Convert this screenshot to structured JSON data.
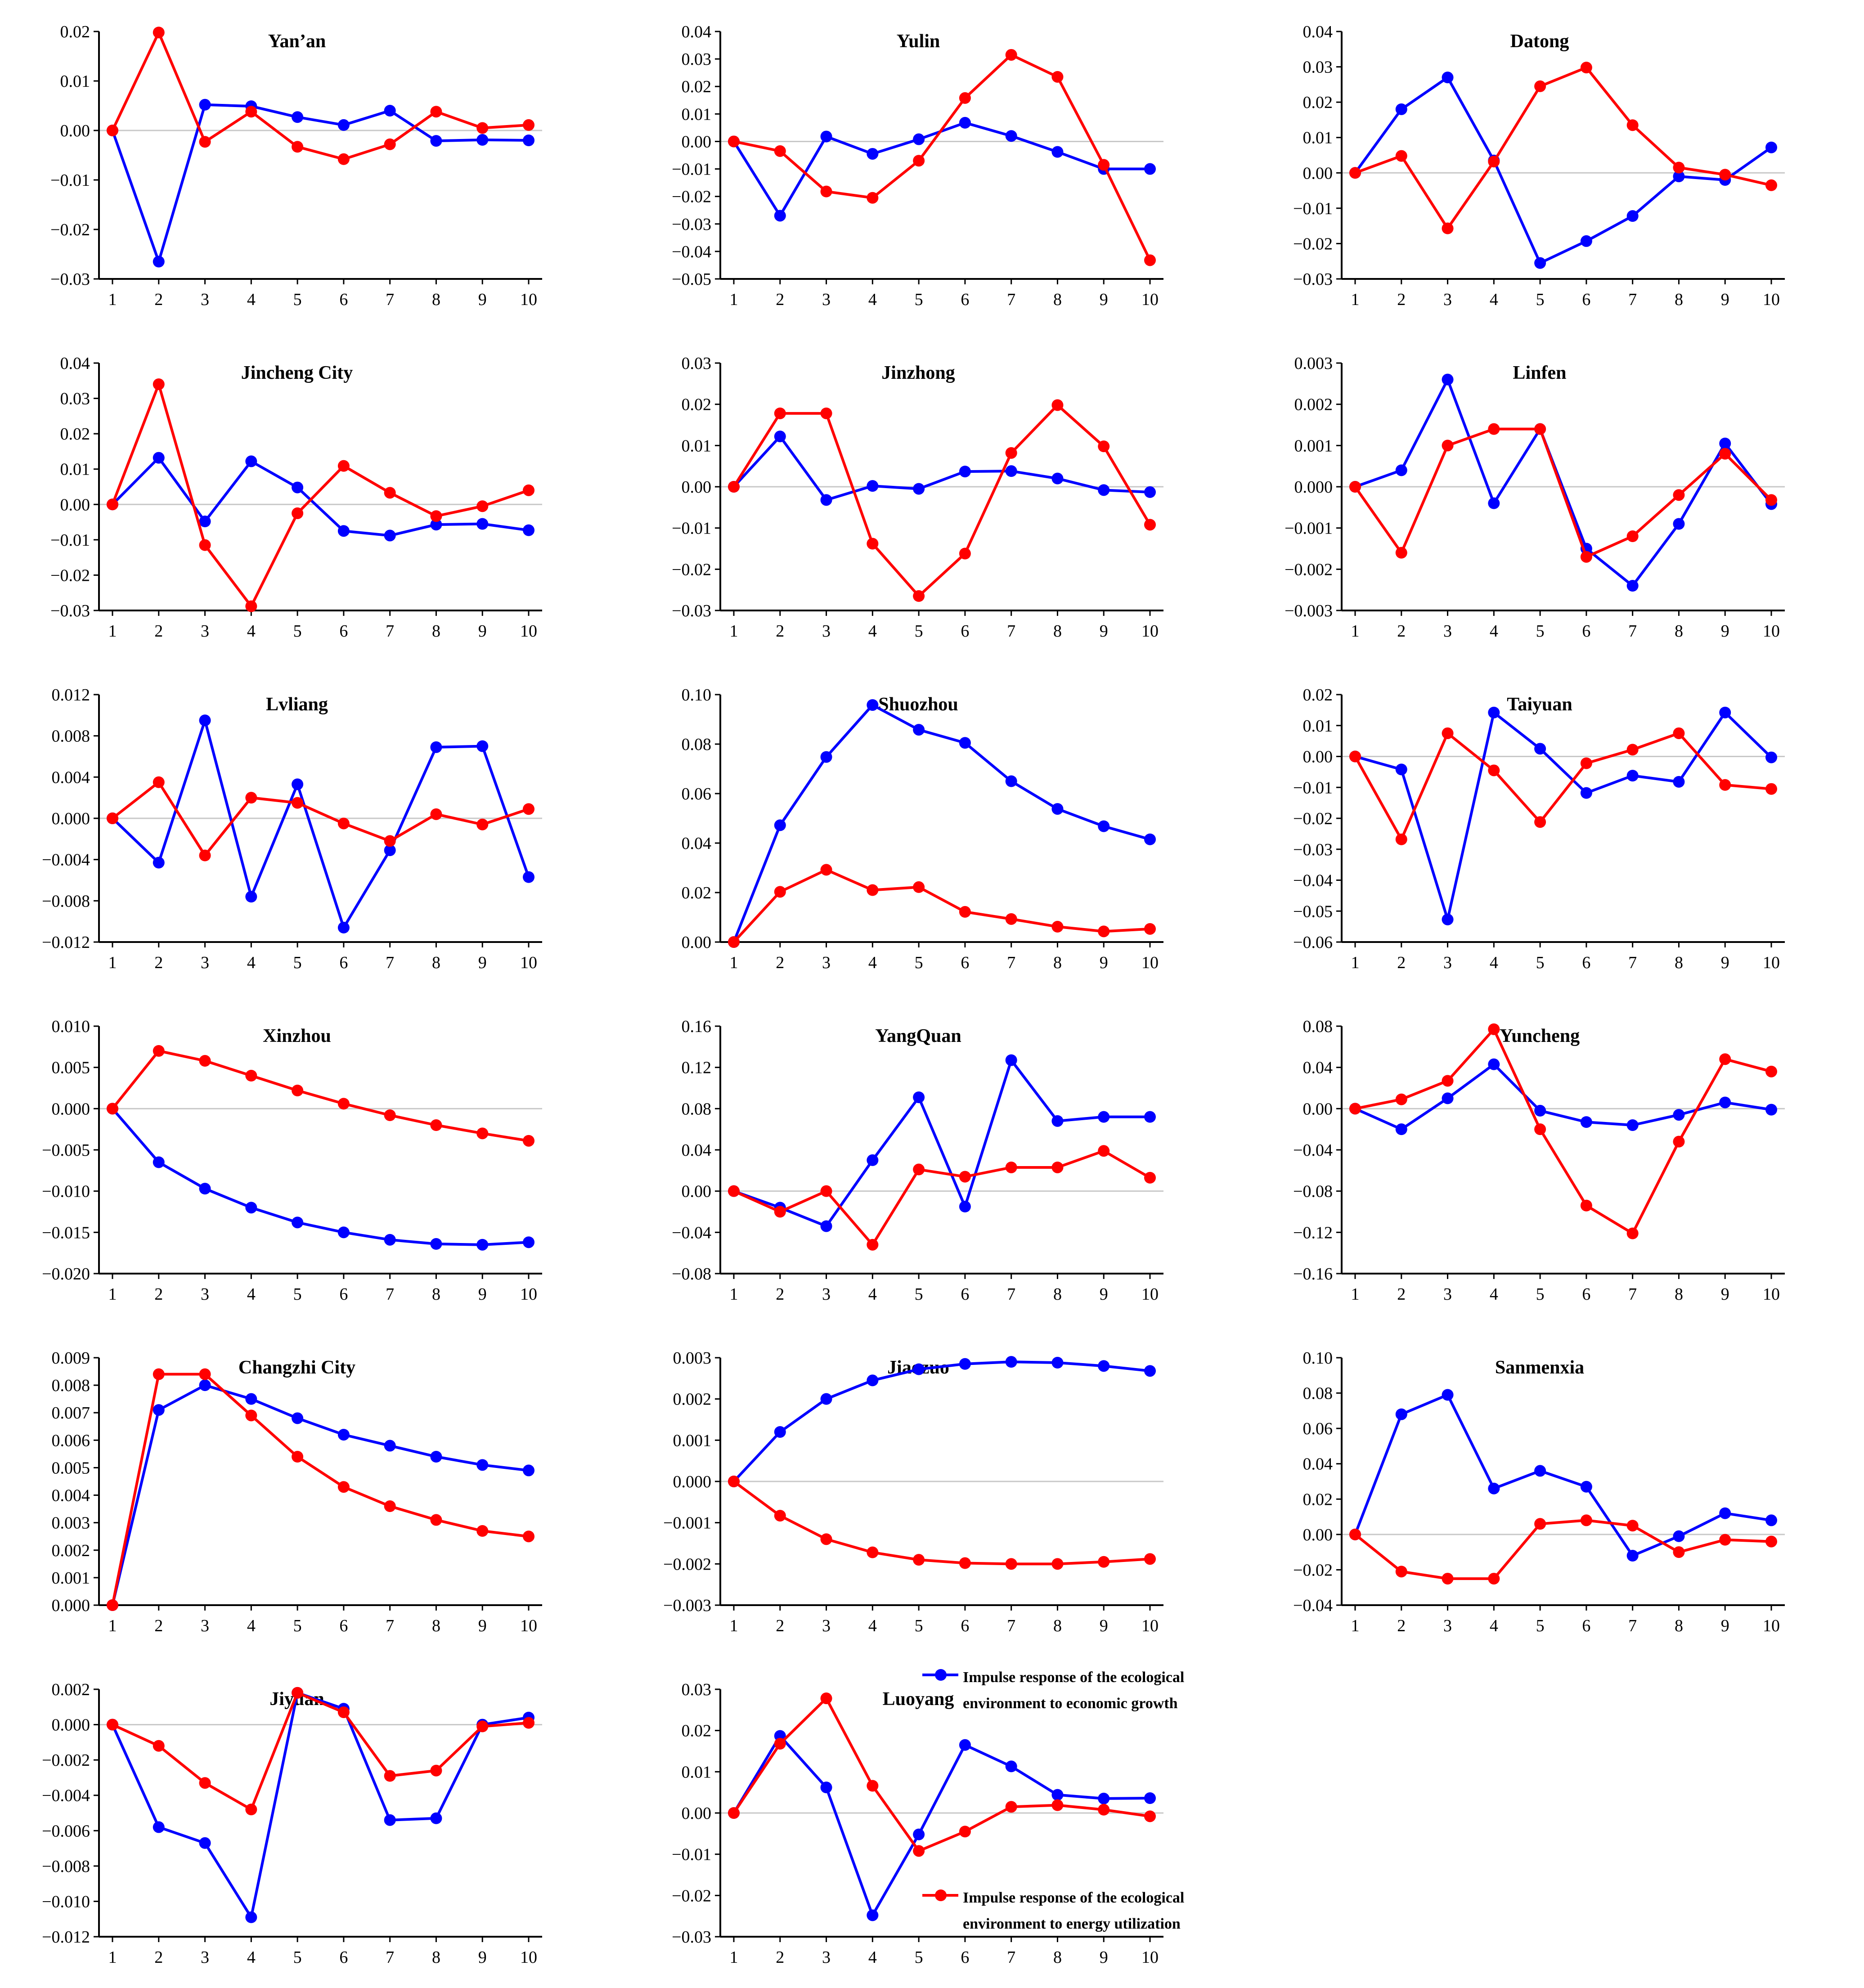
{
  "colors": {
    "economic": "#0000ff",
    "energy": "#ff0000",
    "axis": "#000000",
    "zero": "#c8c8c8"
  },
  "legend": {
    "economic_label": "Impulse response of the ecological environment to economic growth",
    "energy_label": "Impulse response of the ecological environment to energy utilization"
  },
  "chart_data": [
    {
      "type": "line",
      "title": "Yan’an",
      "x": [
        1,
        2,
        3,
        4,
        5,
        6,
        7,
        8,
        9,
        10
      ],
      "ylim": [
        -0.03,
        0.02
      ],
      "yticks": [
        "0.02",
        "0.01",
        "0.00",
        "−0.01",
        "−0.02",
        "−0.03"
      ],
      "ytick_values": [
        0.02,
        0.01,
        0,
        -0.01,
        -0.02,
        -0.03
      ],
      "series": [
        {
          "name": "economic growth",
          "values": [
            0,
            -0.0265,
            0.0052,
            0.0049,
            0.0027,
            0.0011,
            0.004,
            -0.0021,
            -0.0019,
            -0.002
          ]
        },
        {
          "name": "energy utilization",
          "values": [
            0,
            0.0198,
            -0.0023,
            0.0038,
            -0.0033,
            -0.0058,
            -0.0028,
            0.0038,
            0.0005,
            0.0011
          ]
        }
      ]
    },
    {
      "type": "line",
      "title": "Yulin",
      "x": [
        1,
        2,
        3,
        4,
        5,
        6,
        7,
        8,
        9,
        10
      ],
      "ylim": [
        -0.05,
        0.04
      ],
      "yticks": [
        "0.04",
        "0.03",
        "0.02",
        "0.01",
        "0.00",
        "−0.01",
        "−0.02",
        "−0.03",
        "−0.04",
        "−0.05"
      ],
      "ytick_values": [
        0.04,
        0.03,
        0.02,
        0.01,
        0,
        -0.01,
        -0.02,
        -0.03,
        -0.04,
        -0.05
      ],
      "series": [
        {
          "name": "economic growth",
          "values": [
            0,
            -0.027,
            0.0018,
            -0.0045,
            0.0008,
            0.0068,
            0.002,
            -0.0038,
            -0.01,
            -0.01
          ]
        },
        {
          "name": "energy utilization",
          "values": [
            0,
            -0.0035,
            -0.0182,
            -0.0205,
            -0.007,
            0.0158,
            0.0315,
            0.0235,
            -0.0085,
            -0.0432
          ]
        }
      ]
    },
    {
      "type": "line",
      "title": "Datong",
      "x": [
        1,
        2,
        3,
        4,
        5,
        6,
        7,
        8,
        9,
        10
      ],
      "ylim": [
        -0.03,
        0.04
      ],
      "yticks": [
        "0.04",
        "0.03",
        "0.02",
        "0.01",
        "0.00",
        "−0.01",
        "−0.02",
        "−0.03"
      ],
      "ytick_values": [
        0.04,
        0.03,
        0.02,
        0.01,
        0,
        -0.01,
        -0.02,
        -0.03
      ],
      "series": [
        {
          "name": "economic growth",
          "values": [
            0,
            0.018,
            0.027,
            0.0035,
            -0.0255,
            -0.0193,
            -0.0122,
            -0.001,
            -0.002,
            0.0072
          ]
        },
        {
          "name": "energy utilization",
          "values": [
            0,
            0.0048,
            -0.0157,
            0.0032,
            0.0245,
            0.0298,
            0.0135,
            0.0015,
            -0.0005,
            -0.0035
          ]
        }
      ]
    },
    {
      "type": "line",
      "title": "Jincheng City",
      "x": [
        1,
        2,
        3,
        4,
        5,
        6,
        7,
        8,
        9,
        10
      ],
      "ylim": [
        -0.03,
        0.04
      ],
      "yticks": [
        "0.04",
        "0.03",
        "0.02",
        "0.01",
        "0.00",
        "−0.01",
        "−0.02",
        "−0.03"
      ],
      "ytick_values": [
        0.04,
        0.03,
        0.02,
        0.01,
        0,
        -0.01,
        -0.02,
        -0.03
      ],
      "series": [
        {
          "name": "economic growth",
          "values": [
            0,
            0.0132,
            -0.0048,
            0.0122,
            0.0048,
            -0.0075,
            -0.0088,
            -0.0057,
            -0.0055,
            -0.0073
          ]
        },
        {
          "name": "energy utilization",
          "values": [
            0,
            0.034,
            -0.0115,
            -0.0288,
            -0.0025,
            0.0109,
            0.0033,
            -0.0033,
            -0.0005,
            0.004
          ]
        }
      ]
    },
    {
      "type": "line",
      "title": "Jinzhong",
      "x": [
        1,
        2,
        3,
        4,
        5,
        6,
        7,
        8,
        9,
        10
      ],
      "ylim": [
        -0.03,
        0.03
      ],
      "yticks": [
        "0.03",
        "0.02",
        "0.01",
        "0.00",
        "−0.01",
        "−0.02",
        "−0.03"
      ],
      "ytick_values": [
        0.03,
        0.02,
        0.01,
        0,
        -0.01,
        -0.02,
        -0.03
      ],
      "series": [
        {
          "name": "economic growth",
          "values": [
            0,
            0.0122,
            -0.0032,
            0.0002,
            -0.0005,
            0.0037,
            0.0038,
            0.002,
            -0.0008,
            -0.0013
          ]
        },
        {
          "name": "energy utilization",
          "values": [
            0,
            0.0178,
            0.0178,
            -0.0138,
            -0.0265,
            -0.0162,
            0.0082,
            0.0198,
            0.0098,
            -0.0092
          ]
        }
      ]
    },
    {
      "type": "line",
      "title": "Linfen",
      "x": [
        1,
        2,
        3,
        4,
        5,
        6,
        7,
        8,
        9,
        10
      ],
      "ylim": [
        -0.003,
        0.003
      ],
      "yticks": [
        "0.003",
        "0.002",
        "0.001",
        "0.000",
        "−0.001",
        "−0.002",
        "−0.003"
      ],
      "ytick_values": [
        0.003,
        0.002,
        0.001,
        0,
        -0.001,
        -0.002,
        -0.003
      ],
      "series": [
        {
          "name": "economic growth",
          "values": [
            0,
            0.0004,
            0.0026,
            -0.0004,
            0.0014,
            -0.0015,
            -0.0024,
            -0.0009,
            0.00105,
            -0.00042
          ]
        },
        {
          "name": "energy utilization",
          "values": [
            0,
            -0.0016,
            0.001,
            0.0014,
            0.0014,
            -0.0017,
            -0.0012,
            -0.0002,
            0.0008,
            -0.00032
          ]
        }
      ]
    },
    {
      "type": "line",
      "title": "Lvliang",
      "x": [
        1,
        2,
        3,
        4,
        5,
        6,
        7,
        8,
        9,
        10
      ],
      "ylim": [
        -0.012,
        0.012
      ],
      "yticks": [
        "0.012",
        "0.008",
        "0.004",
        "0.000",
        "−0.004",
        "−0.008",
        "−0.012"
      ],
      "ytick_values": [
        0.012,
        0.008,
        0.004,
        0,
        -0.004,
        -0.008,
        -0.012
      ],
      "series": [
        {
          "name": "economic growth",
          "values": [
            0,
            -0.0043,
            0.0095,
            -0.0076,
            0.0033,
            -0.0106,
            -0.0031,
            0.0069,
            0.007,
            -0.0057
          ]
        },
        {
          "name": "energy utilization",
          "values": [
            0,
            0.0035,
            -0.0036,
            0.002,
            0.0015,
            -0.0005,
            -0.0022,
            0.0004,
            -0.0006,
            0.0009
          ]
        }
      ]
    },
    {
      "type": "line",
      "title": "Shuozhou",
      "x": [
        1,
        2,
        3,
        4,
        5,
        6,
        7,
        8,
        9,
        10
      ],
      "ylim": [
        0,
        0.1
      ],
      "yticks": [
        "0.10",
        "0.08",
        "0.06",
        "0.04",
        "0.02",
        "0.00"
      ],
      "ytick_values": [
        0.1,
        0.08,
        0.06,
        0.04,
        0.02,
        0
      ],
      "series": [
        {
          "name": "economic growth",
          "values": [
            0,
            0.0472,
            0.0748,
            0.0958,
            0.0858,
            0.0805,
            0.065,
            0.0538,
            0.0468,
            0.0415
          ]
        },
        {
          "name": "energy utilization",
          "values": [
            0,
            0.0203,
            0.0292,
            0.021,
            0.0222,
            0.0122,
            0.0093,
            0.0062,
            0.0043,
            0.0053
          ]
        }
      ]
    },
    {
      "type": "line",
      "title": "Taiyuan",
      "x": [
        1,
        2,
        3,
        4,
        5,
        6,
        7,
        8,
        9,
        10
      ],
      "ylim": [
        -0.06,
        0.02
      ],
      "yticks": [
        "0.02",
        "0.01",
        "0.00",
        "−0.01",
        "−0.02",
        "−0.03",
        "−0.04",
        "−0.05",
        "−0.06"
      ],
      "ytick_values": [
        0.02,
        0.01,
        0,
        -0.01,
        -0.02,
        -0.03,
        -0.04,
        -0.05,
        -0.06
      ],
      "series": [
        {
          "name": "economic growth",
          "values": [
            0,
            -0.0042,
            -0.0527,
            0.0142,
            0.0025,
            -0.0118,
            -0.0062,
            -0.0082,
            0.0142,
            -0.0003
          ]
        },
        {
          "name": "energy utilization",
          "values": [
            0,
            -0.0268,
            0.0075,
            -0.0045,
            -0.0212,
            -0.0022,
            0.0022,
            0.0075,
            -0.0092,
            -0.0105
          ]
        }
      ]
    },
    {
      "type": "line",
      "title": "Xinzhou",
      "x": [
        1,
        2,
        3,
        4,
        5,
        6,
        7,
        8,
        9,
        10
      ],
      "ylim": [
        -0.02,
        0.01
      ],
      "yticks": [
        "0.010",
        "0.005",
        "0.000",
        "−0.005",
        "−0.010",
        "−0.015",
        "−0.020"
      ],
      "ytick_values": [
        0.01,
        0.005,
        0,
        -0.005,
        -0.01,
        -0.015,
        -0.02
      ],
      "series": [
        {
          "name": "economic growth",
          "values": [
            0,
            -0.0065,
            -0.0097,
            -0.012,
            -0.0138,
            -0.015,
            -0.0159,
            -0.0164,
            -0.0165,
            -0.0162
          ]
        },
        {
          "name": "energy utilization",
          "values": [
            0,
            0.007,
            0.0058,
            0.004,
            0.0022,
            0.0006,
            -0.0008,
            -0.002,
            -0.003,
            -0.0039
          ]
        }
      ]
    },
    {
      "type": "line",
      "title": "YangQuan",
      "x": [
        1,
        2,
        3,
        4,
        5,
        6,
        7,
        8,
        9,
        10
      ],
      "ylim": [
        -0.08,
        0.16
      ],
      "yticks": [
        "0.16",
        "0.12",
        "0.08",
        "0.04",
        "0.00",
        "−0.04",
        "−0.08"
      ],
      "ytick_values": [
        0.16,
        0.12,
        0.08,
        0.04,
        0,
        -0.04,
        -0.08
      ],
      "series": [
        {
          "name": "economic growth",
          "values": [
            0,
            -0.016,
            -0.034,
            0.03,
            0.091,
            -0.015,
            0.127,
            0.068,
            0.072,
            0.072
          ]
        },
        {
          "name": "energy utilization",
          "values": [
            0,
            -0.02,
            0,
            -0.052,
            0.021,
            0.014,
            0.023,
            0.023,
            0.039,
            0.013
          ]
        }
      ]
    },
    {
      "type": "line",
      "title": "Yuncheng",
      "x": [
        1,
        2,
        3,
        4,
        5,
        6,
        7,
        8,
        9,
        10
      ],
      "ylim": [
        -0.16,
        0.08
      ],
      "yticks": [
        "0.08",
        "0.04",
        "0.00",
        "−0.04",
        "−0.08",
        "−0.12",
        "−0.16"
      ],
      "ytick_values": [
        0.08,
        0.04,
        0,
        -0.04,
        -0.08,
        -0.12,
        -0.16
      ],
      "series": [
        {
          "name": "economic growth",
          "values": [
            0,
            -0.02,
            0.01,
            0.043,
            -0.002,
            -0.013,
            -0.016,
            -0.006,
            0.006,
            -0.001
          ]
        },
        {
          "name": "energy utilization",
          "values": [
            0,
            0.009,
            0.027,
            0.077,
            -0.02,
            -0.094,
            -0.121,
            -0.032,
            0.048,
            0.036
          ]
        }
      ]
    },
    {
      "type": "line",
      "title": "Changzhi City",
      "x": [
        1,
        2,
        3,
        4,
        5,
        6,
        7,
        8,
        9,
        10
      ],
      "ylim": [
        0,
        0.009
      ],
      "yticks": [
        "0.009",
        "0.008",
        "0.007",
        "0.006",
        "0.005",
        "0.004",
        "0.003",
        "0.002",
        "0.001",
        "0.000"
      ],
      "ytick_values": [
        0.009,
        0.008,
        0.007,
        0.006,
        0.005,
        0.004,
        0.003,
        0.002,
        0.001,
        0
      ],
      "series": [
        {
          "name": "economic growth",
          "values": [
            0,
            0.0071,
            0.008,
            0.0075,
            0.0068,
            0.0062,
            0.0058,
            0.0054,
            0.0051,
            0.0049
          ]
        },
        {
          "name": "energy utilization",
          "values": [
            0,
            0.0084,
            0.0084,
            0.0069,
            0.0054,
            0.0043,
            0.0036,
            0.0031,
            0.0027,
            0.0025
          ]
        }
      ]
    },
    {
      "type": "line",
      "title": "Jiaozuo",
      "x": [
        1,
        2,
        3,
        4,
        5,
        6,
        7,
        8,
        9,
        10
      ],
      "ylim": [
        -0.003,
        0.003
      ],
      "yticks": [
        "0.003",
        "0.002",
        "0.001",
        "0.000",
        "−0.001",
        "−0.002",
        "−0.003"
      ],
      "ytick_values": [
        0.003,
        0.002,
        0.001,
        0,
        -0.001,
        -0.002,
        -0.003
      ],
      "series": [
        {
          "name": "economic growth",
          "values": [
            0,
            0.0012,
            0.002,
            0.00245,
            0.00272,
            0.00285,
            0.0029,
            0.00288,
            0.0028,
            0.00268
          ]
        },
        {
          "name": "energy utilization",
          "values": [
            0,
            -0.00083,
            -0.0014,
            -0.00172,
            -0.0019,
            -0.00198,
            -0.002,
            -0.002,
            -0.00195,
            -0.00188
          ]
        }
      ]
    },
    {
      "type": "line",
      "title": "Sanmenxia",
      "x": [
        1,
        2,
        3,
        4,
        5,
        6,
        7,
        8,
        9,
        10
      ],
      "ylim": [
        -0.04,
        0.1
      ],
      "yticks": [
        "0.10",
        "0.08",
        "0.06",
        "0.04",
        "0.02",
        "0.00",
        "−0.02",
        "−0.04"
      ],
      "ytick_values": [
        0.1,
        0.08,
        0.06,
        0.04,
        0.02,
        0,
        -0.02,
        -0.04
      ],
      "series": [
        {
          "name": "economic growth",
          "values": [
            0,
            0.068,
            0.079,
            0.026,
            0.036,
            0.027,
            -0.012,
            -0.001,
            0.012,
            0.008
          ]
        },
        {
          "name": "energy utilization",
          "values": [
            0,
            -0.021,
            -0.025,
            -0.025,
            0.006,
            0.008,
            0.005,
            -0.01,
            -0.003,
            -0.004
          ]
        }
      ]
    },
    {
      "type": "line",
      "title": "Jiyuan",
      "x": [
        1,
        2,
        3,
        4,
        5,
        6,
        7,
        8,
        9,
        10
      ],
      "ylim": [
        -0.012,
        0.002
      ],
      "yticks": [
        "0.002",
        "0.000",
        "−0.002",
        "−0.004",
        "−0.006",
        "−0.008",
        "−0.010",
        "−0.012"
      ],
      "ytick_values": [
        0.002,
        0,
        -0.002,
        -0.004,
        -0.006,
        -0.008,
        -0.01,
        -0.012
      ],
      "series": [
        {
          "name": "economic growth",
          "values": [
            0,
            -0.0058,
            -0.0067,
            -0.0109,
            0.0018,
            0.0009,
            -0.0054,
            -0.0053,
            0,
            0.0004
          ]
        },
        {
          "name": "energy utilization",
          "values": [
            0,
            -0.0012,
            -0.0033,
            -0.0048,
            0.0018,
            0.0007,
            -0.0029,
            -0.0026,
            -0.0001,
            0.0001
          ]
        }
      ]
    },
    {
      "type": "line",
      "title": "Luoyang",
      "x": [
        1,
        2,
        3,
        4,
        5,
        6,
        7,
        8,
        9,
        10
      ],
      "ylim": [
        -0.03,
        0.03
      ],
      "yticks": [
        "0.03",
        "0.02",
        "0.01",
        "0.00",
        "−0.01",
        "−0.02",
        "−0.03"
      ],
      "ytick_values": [
        0.03,
        0.02,
        0.01,
        0,
        -0.01,
        -0.02,
        -0.03
      ],
      "series": [
        {
          "name": "economic growth",
          "values": [
            0,
            0.0187,
            0.0062,
            -0.0248,
            -0.0052,
            0.0165,
            0.0113,
            0.0044,
            0.0035,
            0.0036
          ]
        },
        {
          "name": "energy utilization",
          "values": [
            0,
            0.0168,
            0.0278,
            0.0066,
            -0.0092,
            -0.0045,
            0.0015,
            0.0019,
            0.0008,
            -0.0008
          ]
        }
      ]
    }
  ]
}
